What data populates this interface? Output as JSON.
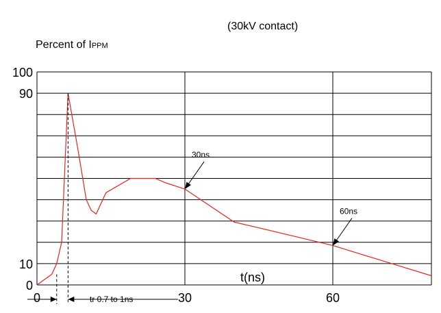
{
  "chart_data": {
    "type": "line",
    "title": "(30kV contact)",
    "ylabel_prefix": "Percent of I",
    "ylabel_sub": "PPM",
    "xlabel": "t(ns)",
    "x_ticks": [
      "0",
      "30",
      "60"
    ],
    "y_ticks": [
      "100",
      "90",
      "10",
      "0"
    ],
    "xlim": [
      0,
      80
    ],
    "ylim": [
      0,
      100
    ],
    "grid": true,
    "line_color": "#e8231f",
    "series": [
      {
        "x": [
          0,
          3,
          4,
          5,
          6.3,
          8.3,
          10,
          11,
          12,
          14,
          19,
          24,
          26,
          30,
          40,
          45,
          60,
          80
        ],
        "y": [
          0,
          5,
          10,
          20,
          90,
          63.7,
          40,
          35,
          33.3,
          43.3,
          50,
          50,
          48,
          45,
          29.5,
          26.8,
          18.5,
          4.3
        ]
      }
    ],
    "annotations": [
      {
        "text": "30ns",
        "x": 30,
        "y": 45
      },
      {
        "text": "60ns",
        "x": 60,
        "y": 18.5
      }
    ],
    "rise_time_label": "tr 0.7 to 1ns",
    "rise_time_range": [
      4,
      6.3
    ]
  }
}
